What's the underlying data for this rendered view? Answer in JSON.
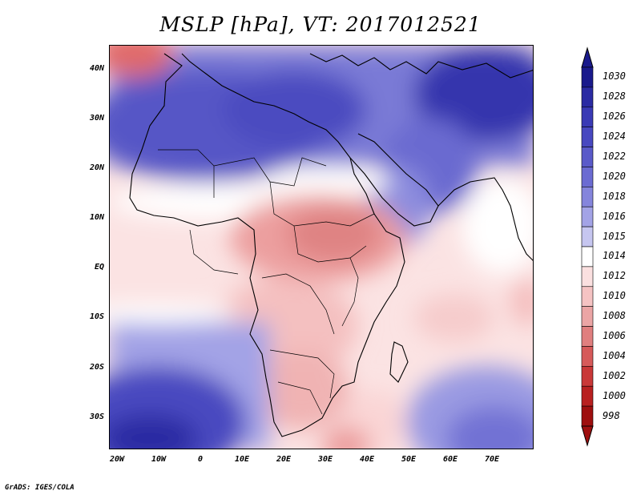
{
  "title": "MSLP [hPa], VT: 2017012521",
  "credit": "GrADS: IGES/COLA",
  "map": {
    "lat_ticks": [
      "40N",
      "30N",
      "20N",
      "10N",
      "EQ",
      "10S",
      "20S",
      "30S"
    ],
    "lon_ticks": [
      "20W",
      "10W",
      "0",
      "10E",
      "20E",
      "30E",
      "40E",
      "50E",
      "60E",
      "70E"
    ],
    "lon_range": [
      -22,
      80
    ],
    "lat_range": [
      -37,
      45
    ]
  },
  "colorbar": {
    "levels": [
      "1030",
      "1028",
      "1026",
      "1024",
      "1022",
      "1020",
      "1018",
      "1016",
      "1015",
      "1014",
      "1012",
      "1010",
      "1008",
      "1006",
      "1004",
      "1002",
      "1000",
      "998"
    ],
    "colors": [
      "#1a1a8c",
      "#2b2ba3",
      "#3a3ab5",
      "#4848c0",
      "#5a5ac9",
      "#6b6bd2",
      "#8585dc",
      "#a3a3e6",
      "#c6c6f0",
      "#ffffff",
      "#fbe0e0",
      "#f5c3c3",
      "#eba5a5",
      "#e07f7f",
      "#d65a5a",
      "#c93838",
      "#b82020",
      "#9e0f0f"
    ]
  }
}
